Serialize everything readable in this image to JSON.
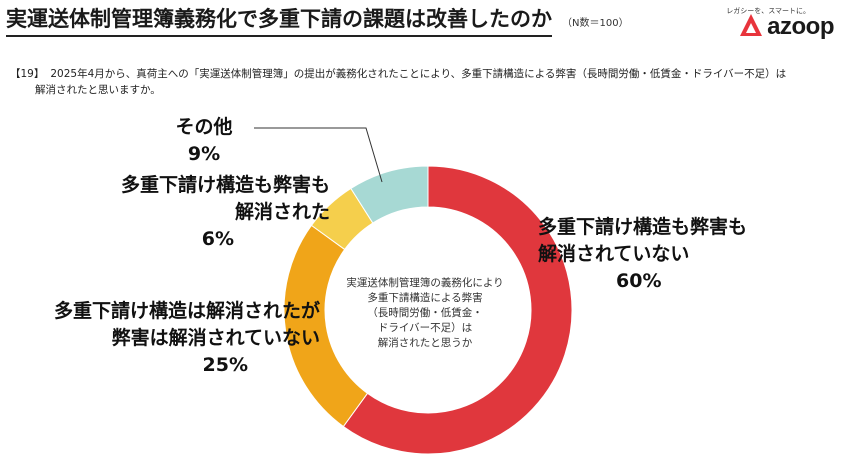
{
  "title": "実運送体制管理簿義務化で多重下請の課題は改善したのか",
  "sample_size": "（N数＝100）",
  "brand": {
    "name": "azoop",
    "tagline": "レガシーを、スマートに。",
    "color": "#e8343c"
  },
  "question": {
    "number": "【19】",
    "line1": "2025年4月から、真荷主への「実運送体制管理簿」の提出が義務化されたことにより、多重下請構造による弊害（長時間労働・低賃金・ドライバー不足）は",
    "line2": "解消されたと思いますか。"
  },
  "center_label": [
    "実運送体制管理簿の義務化により",
    "多重下請構造による弊害",
    "（長時間労働・低賃金・",
    "ドライバー不足）は",
    "解消されたと思うか"
  ],
  "chart_data": {
    "type": "pie",
    "donut": true,
    "title": "実運送体制管理簿義務化で多重下請の課題は改善したのか",
    "slices": [
      {
        "label": "多重下請け構造も弊害も解消されていない",
        "label_lines": [
          "多重下請け構造も弊害も",
          "解消されていない"
        ],
        "value": 60,
        "value_label": "60%",
        "color": "#e0373d"
      },
      {
        "label": "多重下請け構造は解消されたが弊害は解消されていない",
        "label_lines": [
          "多重下請け構造は解消されたが",
          "弊害は解消されていない"
        ],
        "value": 25,
        "value_label": "25%",
        "color": "#f0a519"
      },
      {
        "label": "多重下請け構造も弊害も解消された",
        "label_lines": [
          "多重下請け構造も弊害も",
          "解消された"
        ],
        "value": 6,
        "value_label": "6%",
        "color": "#f5cf4c"
      },
      {
        "label": "その他",
        "label_lines": [
          "その他"
        ],
        "value": 9,
        "value_label": "9%",
        "color": "#a7d9d4"
      }
    ],
    "start_angle": "12 o'clock",
    "direction": "clockwise",
    "legend": "none"
  }
}
